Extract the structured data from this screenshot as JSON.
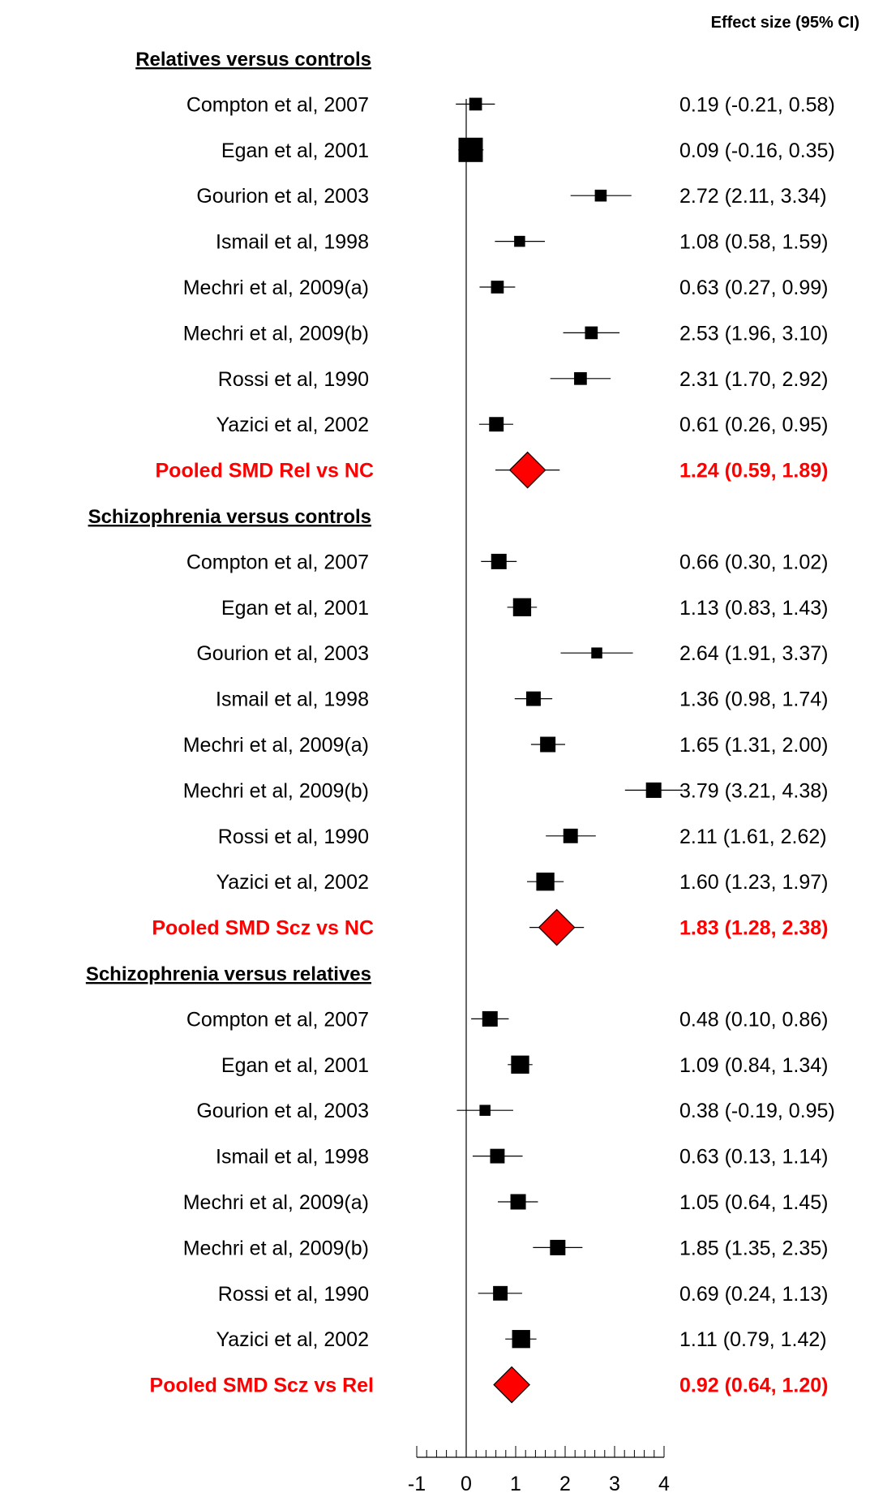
{
  "chart_data": {
    "type": "forest",
    "header": "Effect size (95% CI)",
    "xlim": [
      -1,
      4
    ],
    "x_ticks": [
      "-1",
      "0",
      "1",
      "2",
      "3",
      "4"
    ],
    "reference_line": 0,
    "pooled_color": "#ff0000",
    "groups": [
      {
        "title": "Relatives versus controls",
        "studies": [
          {
            "label": "Compton et al, 2007",
            "est": 0.19,
            "lo": -0.21,
            "hi": 0.58,
            "ci_text": "0.19 (-0.21, 0.58)",
            "weight": 0.35
          },
          {
            "label": "Egan et al, 2001",
            "est": 0.09,
            "lo": -0.16,
            "hi": 0.35,
            "ci_text": "0.09 (-0.16, 0.35)",
            "weight": 1.0
          },
          {
            "label": "Gourion et al, 2003",
            "est": 2.72,
            "lo": 2.11,
            "hi": 3.34,
            "ci_text": "2.72 (2.11, 3.34)",
            "weight": 0.3
          },
          {
            "label": "Ismail et al, 1998",
            "est": 1.08,
            "lo": 0.58,
            "hi": 1.59,
            "ci_text": "1.08 (0.58, 1.59)",
            "weight": 0.25
          },
          {
            "label": "Mechri et al, 2009(a)",
            "est": 0.63,
            "lo": 0.27,
            "hi": 0.99,
            "ci_text": "0.63 (0.27, 0.99)",
            "weight": 0.35
          },
          {
            "label": "Mechri et al, 2009(b)",
            "est": 2.53,
            "lo": 1.96,
            "hi": 3.1,
            "ci_text": "2.53 (1.96, 3.10)",
            "weight": 0.35
          },
          {
            "label": "Rossi et al, 1990",
            "est": 2.31,
            "lo": 1.7,
            "hi": 2.92,
            "ci_text": "2.31 (1.70, 2.92)",
            "weight": 0.35
          },
          {
            "label": "Yazici et al, 2002",
            "est": 0.61,
            "lo": 0.26,
            "hi": 0.95,
            "ci_text": "0.61 (0.26, 0.95)",
            "weight": 0.45
          }
        ],
        "pooled": {
          "label": "Pooled SMD Rel vs NC",
          "est": 1.24,
          "lo": 0.59,
          "hi": 1.89,
          "ci_text": "1.24 (0.59, 1.89)"
        }
      },
      {
        "title": "Schizophrenia versus controls",
        "studies": [
          {
            "label": "Compton et al, 2007",
            "est": 0.66,
            "lo": 0.3,
            "hi": 1.02,
            "ci_text": "0.66 (0.30, 1.02)",
            "weight": 0.5
          },
          {
            "label": "Egan et al, 2001",
            "est": 1.13,
            "lo": 0.83,
            "hi": 1.43,
            "ci_text": "1.13 (0.83, 1.43)",
            "weight": 0.65
          },
          {
            "label": "Gourion et al, 2003",
            "est": 2.64,
            "lo": 1.91,
            "hi": 3.37,
            "ci_text": "2.64 (1.91, 3.37)",
            "weight": 0.25
          },
          {
            "label": "Ismail et al, 1998",
            "est": 1.36,
            "lo": 0.98,
            "hi": 1.74,
            "ci_text": "1.36 (0.98, 1.74)",
            "weight": 0.45
          },
          {
            "label": "Mechri et al, 2009(a)",
            "est": 1.65,
            "lo": 1.31,
            "hi": 2.0,
            "ci_text": "1.65 (1.31, 2.00)",
            "weight": 0.5
          },
          {
            "label": "Mechri et al, 2009(b)",
            "est": 3.79,
            "lo": 3.21,
            "hi": 4.38,
            "ci_text": "3.79 (3.21, 4.38)",
            "weight": 0.5
          },
          {
            "label": "Rossi et al, 1990",
            "est": 2.11,
            "lo": 1.61,
            "hi": 2.62,
            "ci_text": "2.11 (1.61, 2.62)",
            "weight": 0.45
          },
          {
            "label": "Yazici et al, 2002",
            "est": 1.6,
            "lo": 1.23,
            "hi": 1.97,
            "ci_text": "1.60 (1.23, 1.97)",
            "weight": 0.65
          }
        ],
        "pooled": {
          "label": "Pooled SMD Scz vs NC",
          "est": 1.83,
          "lo": 1.28,
          "hi": 2.38,
          "ci_text": "1.83 (1.28, 2.38)"
        }
      },
      {
        "title": "Schizophrenia versus relatives",
        "studies": [
          {
            "label": "Compton et al, 2007",
            "est": 0.48,
            "lo": 0.1,
            "hi": 0.86,
            "ci_text": "0.48 (0.10, 0.86)",
            "weight": 0.5
          },
          {
            "label": "Egan et al, 2001",
            "est": 1.09,
            "lo": 0.84,
            "hi": 1.34,
            "ci_text": "1.09 (0.84, 1.34)",
            "weight": 0.65
          },
          {
            "label": "Gourion et al, 2003",
            "est": 0.38,
            "lo": -0.19,
            "hi": 0.95,
            "ci_text": "0.38 (-0.19, 0.95)",
            "weight": 0.25
          },
          {
            "label": "Ismail et al, 1998",
            "est": 0.63,
            "lo": 0.13,
            "hi": 1.14,
            "ci_text": "0.63 (0.13, 1.14)",
            "weight": 0.45
          },
          {
            "label": "Mechri et al, 2009(a)",
            "est": 1.05,
            "lo": 0.64,
            "hi": 1.45,
            "ci_text": "1.05 (0.64, 1.45)",
            "weight": 0.5
          },
          {
            "label": "Mechri et al, 2009(b)",
            "est": 1.85,
            "lo": 1.35,
            "hi": 2.35,
            "ci_text": "1.85 (1.35, 2.35)",
            "weight": 0.5
          },
          {
            "label": "Rossi et al, 1990",
            "est": 0.69,
            "lo": 0.24,
            "hi": 1.13,
            "ci_text": "0.69 (0.24, 1.13)",
            "weight": 0.45
          },
          {
            "label": "Yazici et al, 2002",
            "est": 1.11,
            "lo": 0.79,
            "hi": 1.42,
            "ci_text": "1.11 (0.79, 1.42)",
            "weight": 0.65
          }
        ],
        "pooled": {
          "label": "Pooled SMD Scz vs Rel",
          "est": 0.92,
          "lo": 0.64,
          "hi": 1.2,
          "ci_text": "0.92 (0.64, 1.20)"
        }
      }
    ]
  }
}
